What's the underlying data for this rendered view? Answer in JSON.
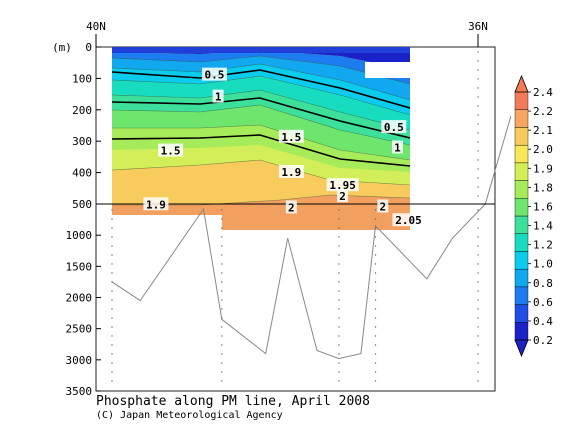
{
  "chart_data": {
    "type": "heatmap",
    "title": "Phosphate along PM line, April 2008",
    "credit": "(C) Japan Meteorological Agency",
    "x_tick_labels": [
      "40N",
      "36N"
    ],
    "y_unit": "(m)",
    "y_axis": {
      "scale": "piecewise-linear (0–500 m expanded, 500–3500 m compressed)",
      "range": [
        0,
        3500
      ],
      "ticks": [
        0,
        100,
        200,
        300,
        400,
        500,
        1000,
        1500,
        2000,
        2500,
        3000,
        3500
      ]
    },
    "colorbar": {
      "levels": [
        0.2,
        0.4,
        0.6,
        0.8,
        1.0,
        1.2,
        1.4,
        1.6,
        1.8,
        1.9,
        2.0,
        2.1,
        2.2,
        2.4
      ],
      "tick_labels": [
        "0.2",
        "0.4",
        "0.6",
        "0.8",
        "1.0",
        "1.2",
        "1.4",
        "1.6",
        "1.8",
        "1.9",
        "2.0",
        "2.1",
        "2.2",
        "2.4"
      ],
      "colors": [
        "#1a22c8",
        "#1f4fe6",
        "#1c7cf0",
        "#12a8f0",
        "#0cccee",
        "#18dcc0",
        "#3ce09a",
        "#6ee66e",
        "#a6ec5a",
        "#d2ef5a",
        "#f6e858",
        "#f7cb5c",
        "#f6a65e",
        "#f27a58"
      ]
    },
    "contour_labels": [
      {
        "text": "0.5",
        "x": 0.28,
        "depth": 88
      },
      {
        "text": "0.5",
        "x": 0.77,
        "depth": 255
      },
      {
        "text": "1",
        "x": 0.29,
        "depth": 158
      },
      {
        "text": "1",
        "x": 0.78,
        "depth": 320
      },
      {
        "text": "1.5",
        "x": 0.16,
        "depth": 330
      },
      {
        "text": "1.5",
        "x": 0.49,
        "depth": 286
      },
      {
        "text": "1.9",
        "x": 0.49,
        "depth": 398
      },
      {
        "text": "1.95",
        "x": 0.63,
        "depth": 440
      },
      {
        "text": "2",
        "x": 0.63,
        "depth": 475
      },
      {
        "text": "2",
        "x": 0.49,
        "depth": 555
      },
      {
        "text": "1.9",
        "x": 0.12,
        "depth": 505
      },
      {
        "text": "2",
        "x": 0.74,
        "depth": 540
      },
      {
        "text": "2.05",
        "x": 0.81,
        "depth": 760
      }
    ],
    "bottom_depth_profile": [
      {
        "x": 0.0,
        "depth": 1750
      },
      {
        "x": 0.077,
        "depth": 2050
      },
      {
        "x": 0.25,
        "depth": 580
      },
      {
        "x": 0.3,
        "depth": 2350
      },
      {
        "x": 0.42,
        "depth": 2900
      },
      {
        "x": 0.48,
        "depth": 1050
      },
      {
        "x": 0.56,
        "depth": 2850
      },
      {
        "x": 0.62,
        "depth": 2980
      },
      {
        "x": 0.68,
        "depth": 2900
      },
      {
        "x": 0.72,
        "depth": 850
      },
      {
        "x": 0.86,
        "depth": 1700
      },
      {
        "x": 0.93,
        "depth": 1050
      },
      {
        "x": 1.02,
        "depth": 500
      },
      {
        "x": 1.09,
        "depth": 220
      }
    ]
  }
}
